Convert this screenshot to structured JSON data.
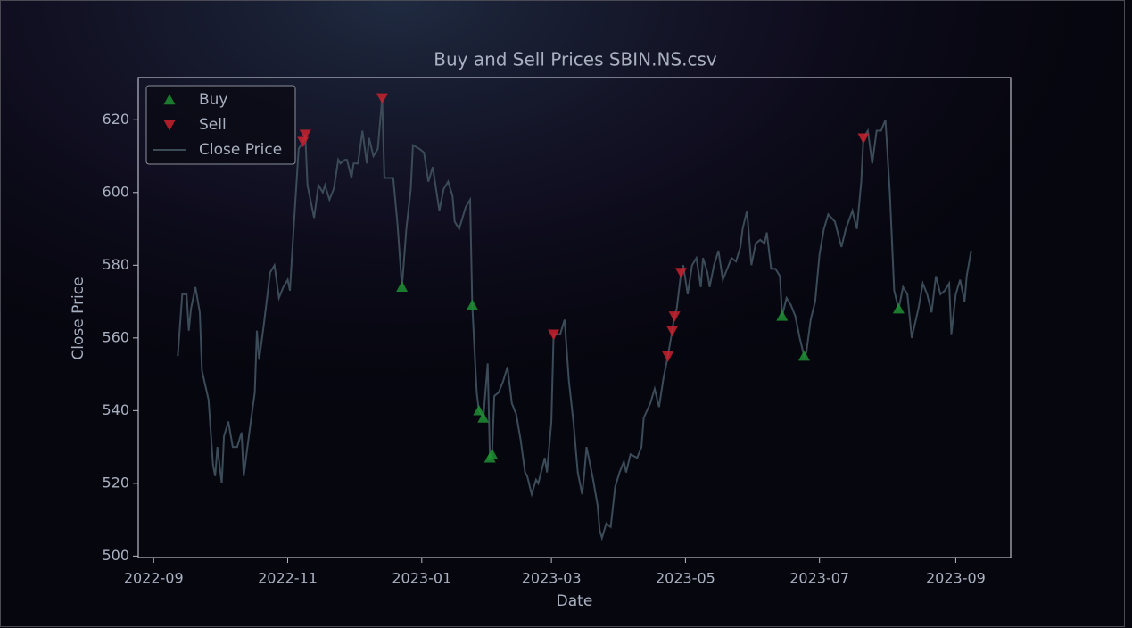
{
  "chart_data": {
    "type": "line",
    "title": "Buy and Sell Prices SBIN.NS.csv",
    "xlabel": "Date",
    "ylabel": "Close Price",
    "xlim": [
      "2022-08-25",
      "2023-09-26"
    ],
    "xticks": [
      "2022-09",
      "2022-11",
      "2023-01",
      "2023-03",
      "2023-05",
      "2023-07",
      "2023-09"
    ],
    "ylim": [
      499.6,
      631.6
    ],
    "yticks": [
      500,
      520,
      540,
      560,
      580,
      600,
      620
    ],
    "legend": "upper left",
    "series": [
      {
        "name": "Buy",
        "color": "#1f8f32",
        "marker": "triangle-up",
        "x": [
          "2022-12-23",
          "2023-01-24",
          "2023-01-27",
          "2023-01-29",
          "2023-02-01",
          "2023-02-02",
          "2023-06-14",
          "2023-06-24",
          "2023-08-06"
        ],
        "values": [
          574,
          569,
          540,
          538,
          527,
          528,
          566,
          555,
          568
        ]
      },
      {
        "name": "Sell",
        "color": "#c8222e",
        "marker": "triangle-down",
        "x": [
          "2022-11-08",
          "2022-11-09",
          "2022-12-14",
          "2023-03-02",
          "2023-04-23",
          "2023-04-25",
          "2023-04-26",
          "2023-04-29",
          "2023-07-21"
        ],
        "values": [
          614,
          616,
          626,
          561,
          555,
          562,
          566,
          578,
          615
        ]
      },
      {
        "name": "Close Price",
        "color": "#3b4b57",
        "marker": "line",
        "x": [
          "2022-09-12",
          "2022-09-14",
          "2022-09-16",
          "2022-09-17",
          "2022-09-18",
          "2022-09-20",
          "2022-09-22",
          "2022-09-23",
          "2022-09-26",
          "2022-09-28",
          "2022-09-29",
          "2022-09-30",
          "2022-10-02",
          "2022-10-03",
          "2022-10-05",
          "2022-10-07",
          "2022-10-09",
          "2022-10-11",
          "2022-10-12",
          "2022-10-15",
          "2022-10-17",
          "2022-10-18",
          "2022-10-19",
          "2022-10-21",
          "2022-10-24",
          "2022-10-26",
          "2022-10-28",
          "2022-10-30",
          "2022-11-01",
          "2022-11-02",
          "2022-11-04",
          "2022-11-06",
          "2022-11-08",
          "2022-11-09",
          "2022-11-10",
          "2022-11-12",
          "2022-11-13",
          "2022-11-15",
          "2022-11-17",
          "2022-11-18",
          "2022-11-20",
          "2022-11-22",
          "2022-11-24",
          "2022-11-25",
          "2022-11-27",
          "2022-11-28",
          "2022-11-30",
          "2022-12-01",
          "2022-12-03",
          "2022-12-05",
          "2022-12-07",
          "2022-12-08",
          "2022-12-10",
          "2022-12-12",
          "2022-12-14",
          "2022-12-15",
          "2022-12-19",
          "2022-12-21",
          "2022-12-23",
          "2022-12-25",
          "2022-12-27",
          "2022-12-28",
          "2022-12-31",
          "2023-01-02",
          "2023-01-04",
          "2023-01-06",
          "2023-01-09",
          "2023-01-11",
          "2023-01-13",
          "2023-01-15",
          "2023-01-16",
          "2023-01-18",
          "2023-01-21",
          "2023-01-23",
          "2023-01-24",
          "2023-01-26",
          "2023-01-27",
          "2023-01-29",
          "2023-01-31",
          "2023-02-01",
          "2023-02-02",
          "2023-02-03",
          "2023-02-05",
          "2023-02-07",
          "2023-02-09",
          "2023-02-11",
          "2023-02-13",
          "2023-02-15",
          "2023-02-17",
          "2023-02-18",
          "2023-02-20",
          "2023-02-22",
          "2023-02-23",
          "2023-02-26",
          "2023-02-27",
          "2023-03-01",
          "2023-03-02",
          "2023-03-05",
          "2023-03-07",
          "2023-03-09",
          "2023-03-11",
          "2023-03-13",
          "2023-03-15",
          "2023-03-16",
          "2023-03-17",
          "2023-03-19",
          "2023-03-20",
          "2023-03-22",
          "2023-03-23",
          "2023-03-24",
          "2023-03-26",
          "2023-03-28",
          "2023-03-30",
          "2023-04-01",
          "2023-04-03",
          "2023-04-04",
          "2023-04-06",
          "2023-04-09",
          "2023-04-11",
          "2023-04-12",
          "2023-04-15",
          "2023-04-17",
          "2023-04-19",
          "2023-04-21",
          "2023-04-23",
          "2023-04-25",
          "2023-04-26",
          "2023-04-27",
          "2023-04-29",
          "2023-04-30",
          "2023-05-02",
          "2023-05-04",
          "2023-05-06",
          "2023-05-08",
          "2023-05-09",
          "2023-05-11",
          "2023-05-12",
          "2023-05-14",
          "2023-05-16",
          "2023-05-18",
          "2023-05-20",
          "2023-05-22",
          "2023-05-24",
          "2023-05-26",
          "2023-05-27",
          "2023-05-29",
          "2023-05-31",
          "2023-06-02",
          "2023-06-04",
          "2023-06-06",
          "2023-06-07",
          "2023-06-09",
          "2023-06-11",
          "2023-06-13",
          "2023-06-14",
          "2023-06-16",
          "2023-06-18",
          "2023-06-20",
          "2023-06-22",
          "2023-06-24",
          "2023-06-25",
          "2023-06-27",
          "2023-06-29",
          "2023-07-01",
          "2023-07-03",
          "2023-07-05",
          "2023-07-08",
          "2023-07-11",
          "2023-07-13",
          "2023-07-16",
          "2023-07-18",
          "2023-07-20",
          "2023-07-21",
          "2023-07-23",
          "2023-07-25",
          "2023-07-27",
          "2023-07-29",
          "2023-07-31",
          "2023-08-02",
          "2023-08-04",
          "2023-08-06",
          "2023-08-08",
          "2023-08-10",
          "2023-08-12",
          "2023-08-15",
          "2023-08-17",
          "2023-08-19",
          "2023-08-21",
          "2023-08-23",
          "2023-08-25",
          "2023-08-27",
          "2023-08-29",
          "2023-08-30",
          "2023-09-01",
          "2023-09-03",
          "2023-09-05",
          "2023-09-06",
          "2023-09-08"
        ],
        "values": [
          555,
          572,
          572,
          562,
          568,
          574,
          567,
          551,
          543,
          525,
          522,
          530,
          520,
          533,
          537,
          530,
          530,
          534,
          522,
          536,
          545,
          562,
          554,
          563,
          578,
          580,
          571,
          574,
          576,
          573,
          593,
          612,
          614,
          616,
          602,
          596,
          593,
          602,
          600,
          602,
          598,
          601,
          609,
          608,
          609,
          609,
          604,
          608,
          608,
          617,
          608,
          615,
          610,
          612,
          626,
          604,
          604,
          591,
          574,
          590,
          601,
          613,
          612,
          611,
          603,
          607,
          595,
          601,
          603,
          599,
          592,
          590,
          596,
          598,
          569,
          545,
          540,
          538,
          553,
          527,
          528,
          544,
          545,
          548,
          552,
          542,
          539,
          532,
          523,
          522,
          517,
          521,
          520,
          527,
          523,
          537,
          561,
          561,
          565,
          548,
          537,
          523,
          517,
          523,
          530,
          524,
          521,
          514,
          507,
          505,
          509,
          508,
          519,
          523,
          526,
          523,
          528,
          527,
          530,
          538,
          542,
          546,
          541,
          549,
          555,
          562,
          566,
          568,
          578,
          580,
          572,
          580,
          582,
          574,
          582,
          578,
          574,
          580,
          584,
          576,
          579,
          582,
          581,
          585,
          590,
          595,
          580,
          586,
          587,
          586,
          589,
          579,
          579,
          577,
          566,
          571,
          569,
          566,
          560,
          555,
          556,
          565,
          570,
          583,
          590,
          594,
          592,
          585,
          590,
          595,
          590,
          603,
          615,
          617,
          608,
          617,
          617,
          620,
          600,
          573,
          568,
          574,
          572,
          560,
          568,
          575,
          572,
          567,
          577,
          572,
          573,
          575,
          561,
          572,
          576,
          570,
          577,
          584
        ]
      }
    ]
  }
}
